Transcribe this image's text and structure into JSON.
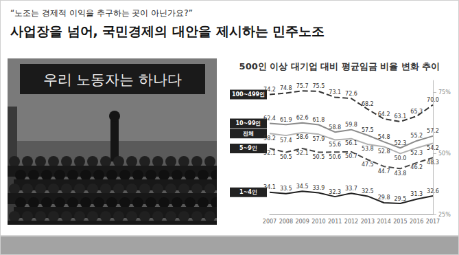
{
  "header": {
    "quote": "“노조는 경제적 이익을 추구하는 곳이 아닌가요?”",
    "title": "사업장을 넘어, 국민경제의 대안을 제시하는 민주노조"
  },
  "photo": {
    "banner": "우리 노동자는 하나다"
  },
  "chart_data": {
    "type": "line",
    "title": "500인 이상 대기업 대비 평균임금 비율 변화 추이",
    "categories": [
      "2007",
      "2008",
      "2009",
      "2010",
      "2011",
      "2012",
      "2013",
      "2014",
      "2015",
      "2016",
      "2017"
    ],
    "series": [
      {
        "name": "100~499인",
        "color": "#333333",
        "line_style": "dashed",
        "values": [
          74.2,
          74.8,
          75.7,
          75.5,
          73.1,
          72.6,
          68.2,
          64.2,
          63.1,
          65.3,
          70.0
        ],
        "value_labels": [
          "74.2",
          "74.8",
          "75.7",
          "75.5",
          "73.1",
          "72.6",
          "68.2",
          "64.2",
          "63.1",
          "65.3",
          "70.0"
        ]
      },
      {
        "name": "10~99인",
        "color": "#8a8a8a",
        "line_style": "solid",
        "values": [
          62.4,
          61.9,
          62.6,
          61.8,
          58.8,
          59.8,
          57.5,
          54.8,
          52.3,
          55.2,
          57.2
        ],
        "value_labels": [
          "62.4",
          "61.9",
          "62.6",
          "61.8",
          "58.8",
          "59.8",
          "57.5",
          "54.8",
          "52.3",
          "55.2",
          "57.2"
        ]
      },
      {
        "name": "전체",
        "color": "#b0b0b0",
        "line_style": "solid",
        "values": [
          58.2,
          57.4,
          58.6,
          57.9,
          55.6,
          56.1,
          53.8,
          52.8,
          50.0,
          52.3,
          54.2
        ],
        "value_labels": [
          "58.2",
          "57.4",
          "58.6",
          "57.9",
          "55.6",
          "56.1",
          "53.8",
          "52.8",
          "50.0",
          "52.3",
          "54.2"
        ]
      },
      {
        "name": "5~9인",
        "color": "#444444",
        "line_style": "dashed",
        "values": [
          52.1,
          50.5,
          52.1,
          50.5,
          50.6,
          50.7,
          47.5,
          44.7,
          43.8,
          46.2,
          48.3
        ],
        "value_labels": [
          "52.1",
          "50.5",
          "52.1",
          "50.5",
          "50.6",
          "50.7",
          "47.5",
          "44.7",
          "43.8",
          "46.2",
          "48.3"
        ]
      },
      {
        "name": "1~4인",
        "color": "#1f1f1f",
        "line_style": "solid",
        "values": [
          34.1,
          33.5,
          34.5,
          33.9,
          32.3,
          33.7,
          32.5,
          29.8,
          29.5,
          31.3,
          32.6
        ],
        "value_labels": [
          "34.1",
          "33.5",
          "34.5",
          "33.9",
          "32.3",
          "33.7",
          "32.5",
          "29.8",
          "29.5",
          "31.3",
          "32.6"
        ]
      }
    ],
    "ylim": [
      25,
      80
    ],
    "yticks": [
      {
        "value": 25,
        "label": "25%"
      },
      {
        "value": 50,
        "label": "50%"
      },
      {
        "value": 75,
        "label": "75%"
      }
    ],
    "grid": false,
    "marker": "none",
    "data_labels": true
  }
}
